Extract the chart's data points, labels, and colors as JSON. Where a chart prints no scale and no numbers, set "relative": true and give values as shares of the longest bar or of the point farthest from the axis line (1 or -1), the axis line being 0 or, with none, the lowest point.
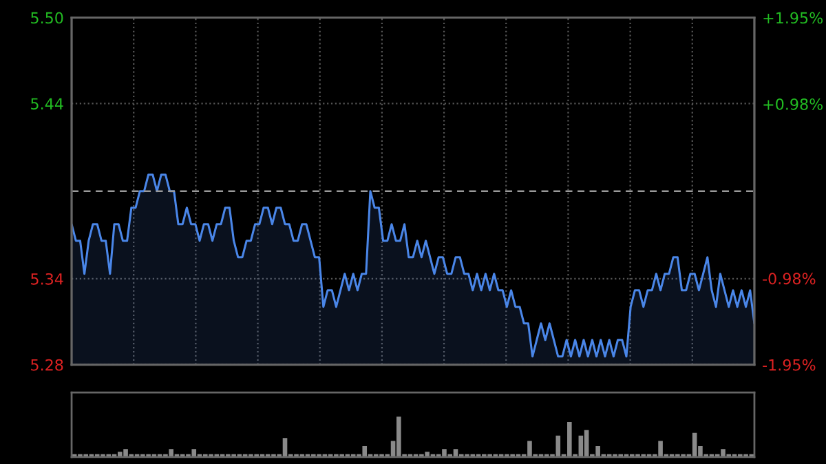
{
  "chart_data": [
    {
      "type": "area",
      "ylim": [
        5.285,
        5.495
      ],
      "yticks": [
        {
          "value": 5.495,
          "label": "5.50"
        },
        {
          "value": 5.443,
          "label": "5.44"
        },
        {
          "value": 5.337,
          "label": "5.34"
        },
        {
          "value": 5.285,
          "label": "5.28"
        }
      ],
      "y2lim": [
        -1.95,
        1.95
      ],
      "y2ticks": [
        {
          "value": 1.95,
          "label": "+1.95%"
        },
        {
          "value": 0.98,
          "label": "+0.98%"
        },
        {
          "value": -0.98,
          "label": "-0.98%"
        },
        {
          "value": -1.95,
          "label": "-1.95%"
        }
      ],
      "ref_lines": [
        {
          "axis": "y",
          "value": 5.39,
          "color": "#9a9a9a",
          "line_style": "dashed"
        }
      ],
      "grid": true,
      "categories": [
        null,
        null,
        null,
        null,
        null,
        null,
        null,
        null,
        null,
        null,
        null,
        null,
        null,
        null,
        null,
        null,
        null,
        null,
        null,
        null,
        null,
        null,
        null,
        null,
        null,
        null,
        null,
        null,
        null,
        null,
        null,
        null,
        null,
        null,
        null,
        null,
        null,
        null,
        null,
        null,
        null,
        null,
        null,
        null,
        null,
        null,
        null,
        null,
        null,
        null,
        null,
        null,
        null,
        null,
        null,
        null,
        null,
        null,
        null,
        null,
        null,
        null,
        null,
        null,
        null,
        null,
        null,
        null,
        null,
        null,
        null,
        null,
        null,
        null,
        null,
        null,
        null,
        null,
        null,
        null,
        null,
        null,
        null,
        null,
        null,
        null,
        null,
        null,
        null,
        null,
        null,
        null,
        null,
        null,
        null,
        null,
        null,
        null,
        null,
        null,
        null,
        null,
        null,
        null,
        null,
        null,
        null,
        null,
        null,
        null,
        null,
        null,
        null,
        null,
        null,
        null,
        null,
        null,
        null,
        null,
        null,
        null,
        null,
        null,
        null,
        null,
        null,
        null,
        null,
        null,
        null,
        null,
        null,
        null,
        null,
        null,
        null,
        null,
        null,
        null,
        null,
        null,
        null,
        null,
        null,
        null,
        null,
        null,
        null,
        null,
        null,
        null,
        null,
        null,
        null,
        null,
        null,
        null,
        null,
        null,
        null
      ],
      "series": [
        {
          "color": "#4a86e8",
          "values": [
            5.37,
            5.36,
            5.36,
            5.34,
            5.36,
            5.37,
            5.37,
            5.36,
            5.36,
            5.34,
            5.37,
            5.37,
            5.36,
            5.36,
            5.38,
            5.38,
            5.39,
            5.39,
            5.4,
            5.4,
            5.39,
            5.4,
            5.4,
            5.39,
            5.39,
            5.37,
            5.37,
            5.38,
            5.37,
            5.37,
            5.36,
            5.37,
            5.37,
            5.36,
            5.37,
            5.37,
            5.38,
            5.38,
            5.36,
            5.35,
            5.35,
            5.36,
            5.36,
            5.37,
            5.37,
            5.38,
            5.38,
            5.37,
            5.38,
            5.38,
            5.37,
            5.37,
            5.36,
            5.36,
            5.37,
            5.37,
            5.36,
            5.35,
            5.35,
            5.32,
            5.33,
            5.33,
            5.32,
            5.33,
            5.34,
            5.33,
            5.34,
            5.33,
            5.34,
            5.34,
            5.39,
            5.38,
            5.38,
            5.36,
            5.36,
            5.37,
            5.36,
            5.36,
            5.37,
            5.35,
            5.35,
            5.36,
            5.35,
            5.36,
            5.35,
            5.34,
            5.35,
            5.35,
            5.34,
            5.34,
            5.35,
            5.35,
            5.34,
            5.34,
            5.33,
            5.34,
            5.33,
            5.34,
            5.33,
            5.34,
            5.33,
            5.33,
            5.32,
            5.33,
            5.32,
            5.32,
            5.31,
            5.31,
            5.29,
            5.3,
            5.31,
            5.3,
            5.31,
            5.3,
            5.29,
            5.29,
            5.3,
            5.29,
            5.3,
            5.29,
            5.3,
            5.29,
            5.3,
            5.29,
            5.3,
            5.29,
            5.3,
            5.29,
            5.3,
            5.3,
            5.29,
            5.32,
            5.33,
            5.33,
            5.32,
            5.33,
            5.33,
            5.34,
            5.33,
            5.34,
            5.34,
            5.35,
            5.35,
            5.33,
            5.33,
            5.34,
            5.34,
            5.33,
            5.34,
            5.35,
            5.33,
            5.32,
            5.34,
            5.33,
            5.32,
            5.33,
            5.32,
            5.33,
            5.32,
            5.33,
            5.31
          ]
        }
      ]
    },
    {
      "type": "bar",
      "relative": true,
      "color": "#8a8a8a",
      "categories": [
        null,
        null,
        null,
        null,
        null,
        null,
        null,
        null,
        null,
        null,
        null,
        null,
        null,
        null,
        null,
        null,
        null,
        null,
        null,
        null,
        null,
        null,
        null,
        null,
        null,
        null,
        null,
        null,
        null,
        null,
        null,
        null,
        null,
        null,
        null,
        null,
        null,
        null,
        null,
        null,
        null,
        null,
        null,
        null,
        null,
        null,
        null,
        null,
        null,
        null,
        null,
        null,
        null,
        null,
        null,
        null,
        null,
        null,
        null,
        null,
        null,
        null,
        null,
        null,
        null,
        null,
        null,
        null,
        null,
        null,
        null,
        null,
        null,
        null,
        null,
        null,
        null,
        null,
        null,
        null,
        null,
        null,
        null,
        null,
        null,
        null,
        null,
        null,
        null,
        null,
        null,
        null,
        null,
        null,
        null,
        null,
        null,
        null,
        null,
        null,
        null,
        null,
        null,
        null,
        null,
        null,
        null,
        null,
        null,
        null,
        null,
        null,
        null,
        null,
        null,
        null,
        null,
        null,
        null,
        null
      ],
      "values": [
        0.07,
        0.07,
        0.07,
        0.07,
        0.07,
        0.07,
        0.07,
        0.07,
        0.13,
        0.2,
        0.07,
        0.07,
        0.07,
        0.07,
        0.07,
        0.07,
        0.07,
        0.2,
        0.07,
        0.07,
        0.07,
        0.2,
        0.07,
        0.07,
        0.07,
        0.07,
        0.07,
        0.07,
        0.07,
        0.07,
        0.07,
        0.07,
        0.07,
        0.07,
        0.07,
        0.07,
        0.07,
        0.47,
        0.07,
        0.07,
        0.07,
        0.07,
        0.07,
        0.07,
        0.07,
        0.07,
        0.07,
        0.07,
        0.07,
        0.07,
        0.07,
        0.27,
        0.07,
        0.07,
        0.07,
        0.07,
        0.4,
        1,
        0.07,
        0.07,
        0.07,
        0.07,
        0.13,
        0.07,
        0.07,
        0.2,
        0.07,
        0.2,
        0.07,
        0.07,
        0.07,
        0.07,
        0.07,
        0.07,
        0.07,
        0.07,
        0.07,
        0.07,
        0.07,
        0.07,
        0.4,
        0.07,
        0.07,
        0.07,
        0.07,
        0.53,
        0.07,
        0.87,
        0.07,
        0.53,
        0.67,
        0.07,
        0.27,
        0.07,
        0.07,
        0.07,
        0.07,
        0.07,
        0.07,
        0.07,
        0.07,
        0.07,
        0.07,
        0.4,
        0.07,
        0.07,
        0.07,
        0.07,
        0.07,
        0.6,
        0.27,
        0.07,
        0.07,
        0.07,
        0.2,
        0.07,
        0.07,
        0.07,
        0.07,
        0.07
      ]
    }
  ]
}
